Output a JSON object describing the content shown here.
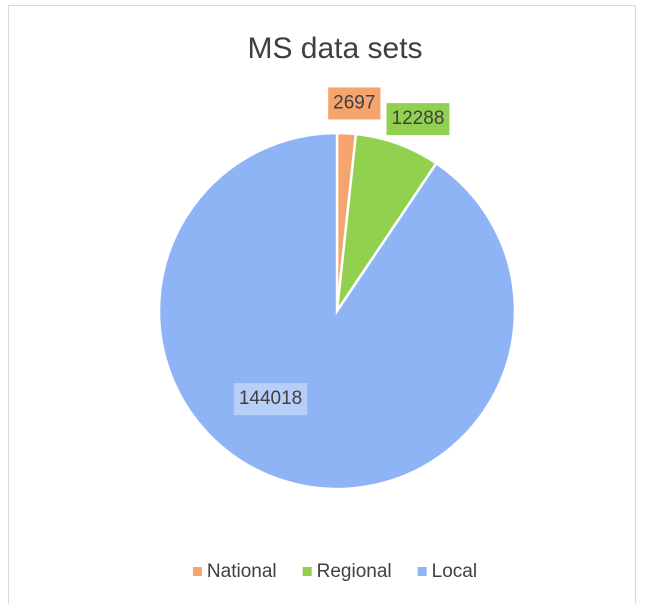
{
  "chart_data": {
    "type": "pie",
    "title": "MS data sets",
    "categories": [
      "National",
      "Regional",
      "Local"
    ],
    "values": [
      2697,
      12288,
      144018
    ],
    "colors": [
      "#f4a46c",
      "#92d050",
      "#8fb4f6"
    ],
    "legend": "bottom"
  }
}
